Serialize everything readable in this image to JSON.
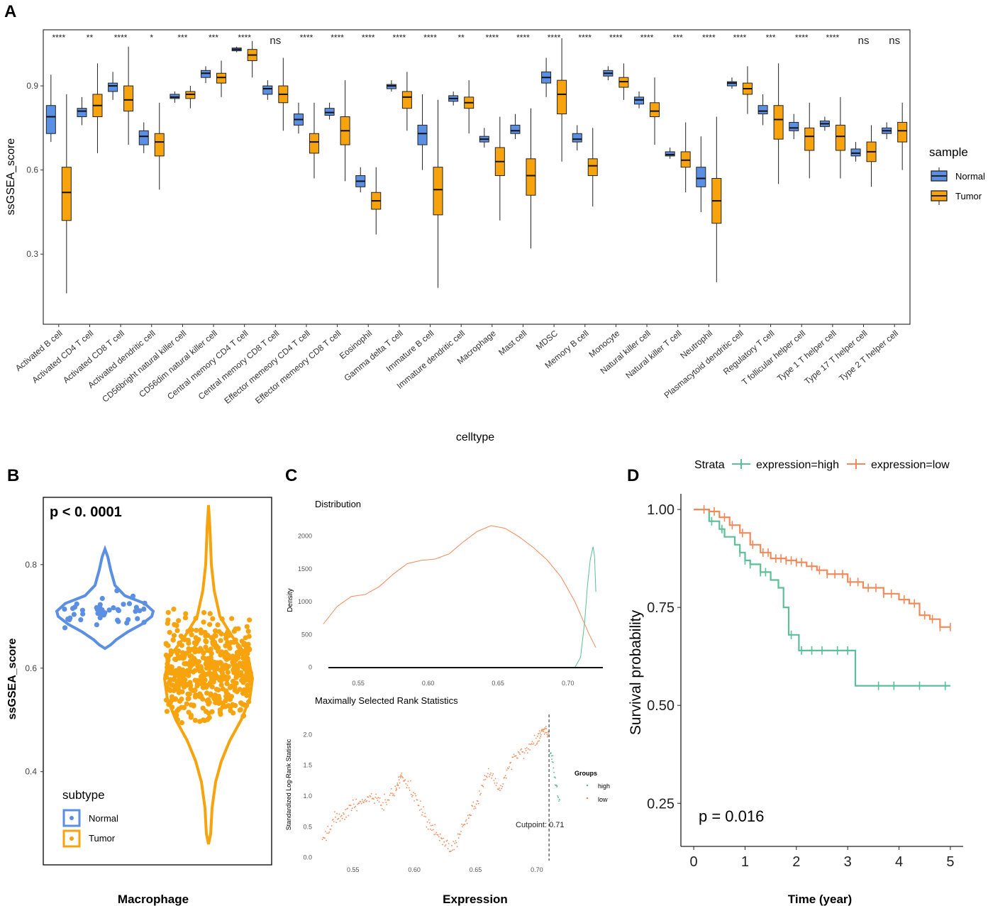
{
  "panel_labels": {
    "a": "A",
    "b": "B",
    "c": "C",
    "d": "D"
  },
  "colors": {
    "normal": "#5b8fe3",
    "tumor": "#f7a30d",
    "high": "#5bbf97",
    "low": "#f08a5a",
    "axis": "#333333",
    "text": "#222222"
  },
  "chart_data": [
    {
      "panel": "A",
      "type": "box",
      "title": "",
      "xlabel": "celltype",
      "ylabel": "ssGSEA_score",
      "ylim": [
        0.05,
        1.1
      ],
      "yticks": [
        0.3,
        0.6,
        0.9
      ],
      "ytick_labels": [
        "0.3",
        "0.6",
        "0.9"
      ],
      "legend": {
        "title": "sample",
        "position": "right",
        "entries": [
          "Normal",
          "Tumor"
        ]
      },
      "categories": [
        "Activated B cell",
        "Activated CD4 T cell",
        "Activated CD8 T cell",
        "Activated dendritic cell",
        "CD56bright natural killer cell",
        "CD56dim natural killer cell",
        "Central memory CD4 T cell",
        "Central memory CD8 T cell",
        "Effector memeory CD4 T cell",
        "Effector memeory CD8 T cell",
        "Eosinophil",
        "Gamma delta T cell",
        "Immature  B cell",
        "Immature dendritic cell",
        "Macrophage",
        "Mast cell",
        "MDSC",
        "Memory B cell",
        "Monocyte",
        "Natural killer cell",
        "Natural killer T cell",
        "Neutrophil",
        "Plasmacytoid dendritic cell",
        "Regulatory T cell",
        "T follicular helper cell",
        "Type 1 T helper cell",
        "Type 17 T helper cell",
        "Type 2 T helper cell"
      ],
      "significance": [
        "****",
        "**",
        "****",
        "*",
        "***",
        "***",
        "****",
        "ns",
        "****",
        "****",
        "****",
        "****",
        "****",
        "**",
        "****",
        "****",
        "****",
        "****",
        "****",
        "****",
        "***",
        "****",
        "****",
        "***",
        "****",
        "****",
        "ns",
        "ns"
      ],
      "series": [
        {
          "name": "Normal",
          "stats": [
            [
              0.7,
              0.73,
              0.79,
              0.83,
              0.94
            ],
            [
              0.76,
              0.79,
              0.81,
              0.82,
              0.86
            ],
            [
              0.85,
              0.88,
              0.9,
              0.91,
              0.95
            ],
            [
              0.66,
              0.69,
              0.72,
              0.74,
              0.77
            ],
            [
              0.84,
              0.855,
              0.86,
              0.87,
              0.88
            ],
            [
              0.91,
              0.93,
              0.945,
              0.955,
              0.97
            ],
            [
              1.02,
              1.025,
              1.03,
              1.035,
              1.04
            ],
            [
              0.85,
              0.87,
              0.89,
              0.9,
              0.92
            ],
            [
              0.73,
              0.76,
              0.78,
              0.8,
              0.84
            ],
            [
              0.78,
              0.795,
              0.805,
              0.82,
              0.84
            ],
            [
              0.52,
              0.54,
              0.56,
              0.58,
              0.61
            ],
            [
              0.88,
              0.89,
              0.9,
              0.905,
              0.92
            ],
            [
              0.6,
              0.69,
              0.73,
              0.76,
              0.87
            ],
            [
              0.83,
              0.845,
              0.855,
              0.865,
              0.88
            ],
            [
              0.68,
              0.7,
              0.71,
              0.72,
              0.75
            ],
            [
              0.71,
              0.73,
              0.74,
              0.76,
              0.8
            ],
            [
              0.86,
              0.91,
              0.93,
              0.95,
              1.0
            ],
            [
              0.67,
              0.7,
              0.71,
              0.73,
              0.76
            ],
            [
              0.92,
              0.935,
              0.945,
              0.955,
              0.97
            ],
            [
              0.82,
              0.835,
              0.85,
              0.86,
              0.88
            ],
            [
              0.64,
              0.65,
              0.655,
              0.665,
              0.68
            ],
            [
              0.45,
              0.54,
              0.57,
              0.61,
              0.72
            ],
            [
              0.89,
              0.9,
              0.91,
              0.915,
              0.93
            ],
            [
              0.76,
              0.8,
              0.81,
              0.83,
              0.87
            ],
            [
              0.71,
              0.74,
              0.75,
              0.77,
              0.8
            ],
            [
              0.74,
              0.755,
              0.765,
              0.775,
              0.79
            ],
            [
              0.63,
              0.65,
              0.66,
              0.675,
              0.7
            ],
            [
              0.71,
              0.73,
              0.74,
              0.75,
              0.77
            ]
          ]
        },
        {
          "name": "Tumor",
          "stats": [
            [
              0.16,
              0.42,
              0.52,
              0.61,
              0.87
            ],
            [
              0.66,
              0.79,
              0.83,
              0.87,
              0.98
            ],
            [
              0.69,
              0.81,
              0.85,
              0.9,
              1.04
            ],
            [
              0.53,
              0.65,
              0.7,
              0.73,
              0.84
            ],
            [
              0.82,
              0.855,
              0.87,
              0.88,
              0.9
            ],
            [
              0.86,
              0.91,
              0.93,
              0.945,
              0.99
            ],
            [
              0.93,
              0.99,
              1.01,
              1.03,
              1.06
            ],
            [
              0.74,
              0.84,
              0.87,
              0.9,
              1.0
            ],
            [
              0.57,
              0.66,
              0.7,
              0.73,
              0.84
            ],
            [
              0.56,
              0.69,
              0.74,
              0.79,
              0.92
            ],
            [
              0.37,
              0.46,
              0.49,
              0.52,
              0.61
            ],
            [
              0.74,
              0.82,
              0.86,
              0.88,
              0.95
            ],
            [
              0.18,
              0.44,
              0.53,
              0.61,
              0.85
            ],
            [
              0.73,
              0.82,
              0.84,
              0.86,
              0.92
            ],
            [
              0.42,
              0.58,
              0.63,
              0.68,
              0.79
            ],
            [
              0.32,
              0.51,
              0.58,
              0.64,
              0.82
            ],
            [
              0.63,
              0.8,
              0.87,
              0.92,
              1.07
            ],
            [
              0.47,
              0.58,
              0.615,
              0.64,
              0.75
            ],
            [
              0.85,
              0.895,
              0.915,
              0.93,
              0.98
            ],
            [
              0.69,
              0.79,
              0.81,
              0.84,
              0.93
            ],
            [
              0.52,
              0.61,
              0.635,
              0.665,
              0.77
            ],
            [
              0.2,
              0.41,
              0.49,
              0.57,
              0.79
            ],
            [
              0.8,
              0.87,
              0.89,
              0.91,
              0.97
            ],
            [
              0.55,
              0.71,
              0.78,
              0.83,
              0.98
            ],
            [
              0.57,
              0.67,
              0.72,
              0.75,
              0.84
            ],
            [
              0.57,
              0.67,
              0.72,
              0.76,
              0.86
            ],
            [
              0.54,
              0.63,
              0.665,
              0.7,
              0.76
            ],
            [
              0.6,
              0.7,
              0.74,
              0.77,
              0.84
            ]
          ]
        }
      ]
    },
    {
      "panel": "B",
      "type": "violin",
      "title": "Macrophage",
      "annotation": "p < 0. 0001",
      "xlabel": "",
      "ylabel": "ssGSEA_score",
      "ylim": [
        0.22,
        0.93
      ],
      "yticks": [
        0.4,
        0.6,
        0.8
      ],
      "ytick_labels": [
        "0.4",
        "0.6",
        "0.8"
      ],
      "legend": {
        "title": "subtype",
        "position": "bottom-left",
        "entries": [
          "Normal",
          "Tumor"
        ]
      },
      "groups": [
        {
          "name": "Normal",
          "min": 0.64,
          "max": 0.83,
          "median": 0.71,
          "n": 45
        },
        {
          "name": "Tumor",
          "min": 0.26,
          "max": 0.92,
          "median": 0.62,
          "n": 520
        }
      ]
    },
    {
      "panel": "C",
      "type": "line",
      "title": "Distribution",
      "xlabel": "",
      "ylabel": "Density",
      "xlim": [
        0.52,
        0.725
      ],
      "ylim": [
        -60,
        2300
      ],
      "xticks": [
        0.55,
        0.6,
        0.65,
        0.7
      ],
      "xtick_labels": [
        "0.55",
        "0.60",
        "0.65",
        "0.70"
      ],
      "yticks": [
        0,
        500,
        1000,
        1500,
        2000
      ],
      "ytick_labels": [
        "0",
        "500",
        "1000",
        "1500",
        "2000"
      ],
      "series": [
        {
          "name": "low",
          "x": [
            0.525,
            0.535,
            0.545,
            0.555,
            0.565,
            0.575,
            0.585,
            0.595,
            0.605,
            0.615,
            0.625,
            0.635,
            0.645,
            0.655,
            0.665,
            0.675,
            0.685,
            0.695,
            0.705,
            0.715,
            0.72
          ],
          "y": [
            660,
            930,
            1080,
            1110,
            1230,
            1420,
            1580,
            1630,
            1650,
            1730,
            1910,
            2070,
            2160,
            2120,
            1990,
            1830,
            1640,
            1380,
            1000,
            510,
            300
          ]
        },
        {
          "name": "high",
          "x": [
            0.705,
            0.709,
            0.712,
            0.714,
            0.716,
            0.718,
            0.719,
            0.72
          ],
          "y": [
            0,
            150,
            700,
            1250,
            1650,
            1840,
            1700,
            1150
          ]
        }
      ]
    },
    {
      "panel": "C",
      "type": "scatter",
      "title": "Maximally Selected Rank Statistics",
      "xlabel": "Expression",
      "ylabel": "Standardized Log-Rank Statistic",
      "xlim": [
        0.52,
        0.725
      ],
      "ylim": [
        -0.05,
        2.35
      ],
      "xticks": [
        0.55,
        0.6,
        0.65,
        0.7
      ],
      "xtick_labels": [
        "0.55",
        "0.60",
        "0.65",
        "0.70"
      ],
      "yticks": [
        0.0,
        0.5,
        1.0,
        1.5,
        2.0
      ],
      "ytick_labels": [
        "0.0",
        "0.5",
        "1.0",
        "1.5",
        "2.0"
      ],
      "cutpoint": 0.71,
      "cutpoint_label": "Cutpoint: 0.71",
      "legend": {
        "title": "Groups",
        "position": "right",
        "entries": [
          "high",
          "low"
        ]
      },
      "series": [
        {
          "name": "low",
          "x": [
            0.525,
            0.535,
            0.545,
            0.555,
            0.565,
            0.575,
            0.585,
            0.59,
            0.6,
            0.61,
            0.62,
            0.63,
            0.64,
            0.65,
            0.66,
            0.67,
            0.68,
            0.69,
            0.7,
            0.705,
            0.71
          ],
          "y": [
            0.3,
            0.6,
            0.75,
            0.9,
            1.0,
            0.85,
            1.1,
            1.35,
            1.0,
            0.6,
            0.35,
            0.1,
            0.5,
            0.9,
            1.4,
            1.1,
            1.6,
            1.75,
            1.9,
            2.1,
            2.0
          ]
        },
        {
          "name": "high",
          "x": [
            0.711,
            0.713,
            0.715,
            0.717,
            0.719
          ],
          "y": [
            1.75,
            1.6,
            1.25,
            1.05,
            0.9
          ]
        }
      ]
    },
    {
      "panel": "D",
      "type": "step",
      "title": "",
      "xlabel": "Time (year)",
      "ylabel": "Survival probability",
      "xlim": [
        -0.25,
        5.25
      ],
      "ylim": [
        0.14,
        1.04
      ],
      "xticks": [
        0,
        1,
        2,
        3,
        4,
        5
      ],
      "xtick_labels": [
        "0",
        "1",
        "2",
        "3",
        "4",
        "5"
      ],
      "yticks": [
        0.25,
        0.5,
        0.75,
        1.0
      ],
      "ytick_labels": [
        "0.25",
        "0.50",
        "0.75",
        "1.00"
      ],
      "annotation": "p = 0.016",
      "legend": {
        "title": "Strata",
        "position": "top",
        "entries": [
          "expression=high",
          "expression=low"
        ]
      },
      "series": [
        {
          "name": "expression=high",
          "x": [
            0,
            0.3,
            0.5,
            0.6,
            0.8,
            0.9,
            1.0,
            1.1,
            1.3,
            1.5,
            1.65,
            1.75,
            1.85,
            2.05,
            3.15,
            5.0
          ],
          "y": [
            1.0,
            0.97,
            0.95,
            0.93,
            0.91,
            0.89,
            0.87,
            0.86,
            0.84,
            0.82,
            0.8,
            0.75,
            0.68,
            0.64,
            0.55,
            0.55
          ],
          "censor_x": [
            0.35,
            0.55,
            0.9,
            1.0,
            1.1,
            1.3,
            1.4,
            1.9,
            2.1,
            2.3,
            2.5,
            2.8,
            3.0,
            3.6,
            3.9,
            4.4,
            4.9
          ]
        },
        {
          "name": "expression=low",
          "x": [
            0,
            0.3,
            0.5,
            0.7,
            0.9,
            1.1,
            1.3,
            1.5,
            1.8,
            2.0,
            2.2,
            2.4,
            2.6,
            3.0,
            3.3,
            3.7,
            4.0,
            4.2,
            4.4,
            4.6,
            4.8,
            5.0
          ],
          "y": [
            1.0,
            0.995,
            0.98,
            0.96,
            0.94,
            0.91,
            0.89,
            0.875,
            0.87,
            0.865,
            0.855,
            0.845,
            0.835,
            0.815,
            0.8,
            0.785,
            0.77,
            0.76,
            0.73,
            0.72,
            0.7,
            0.7
          ],
          "censor_x": [
            0.2,
            0.4,
            0.6,
            0.75,
            0.95,
            1.15,
            1.35,
            1.45,
            1.6,
            1.7,
            1.8,
            1.9,
            2.0,
            2.1,
            2.3,
            2.45,
            2.6,
            2.75,
            2.9,
            3.05,
            3.2,
            3.4,
            3.55,
            3.7,
            3.85,
            4.1,
            4.3,
            4.5,
            4.65,
            4.8,
            5.0
          ]
        }
      ]
    }
  ]
}
